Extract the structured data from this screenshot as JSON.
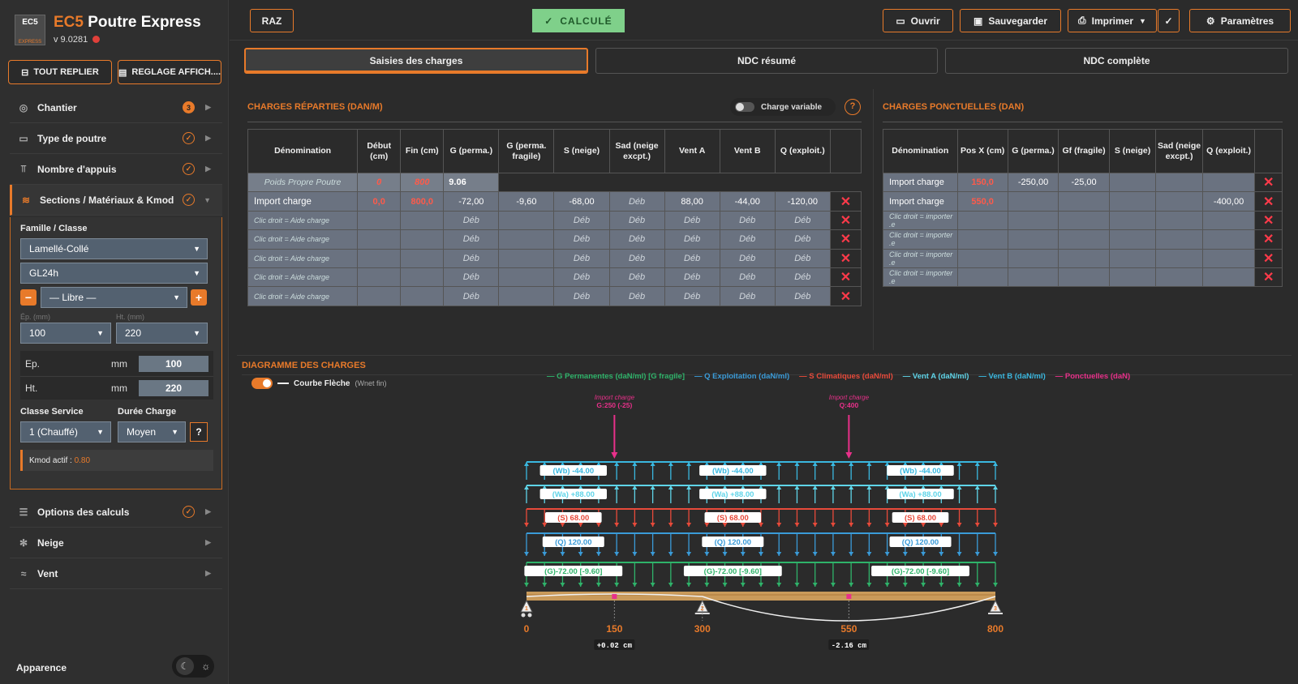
{
  "app": {
    "logo_text": "EC5",
    "logo_sub": "EXPRESS",
    "title_prefix": "EC5",
    "title_rest": "Poutre Express",
    "version": "v 9.0281"
  },
  "sidebar": {
    "btn_collapse": "TOUT REPLIER",
    "btn_display": "REGLAGE AFFICH....",
    "items": [
      {
        "label": "Chantier",
        "badge": "3"
      },
      {
        "label": "Type de poutre"
      },
      {
        "label": "Nombre d'appuis"
      },
      {
        "label": "Sections / Matériaux & Kmod"
      },
      {
        "label": "Options des calculs"
      },
      {
        "label": "Neige"
      },
      {
        "label": "Vent"
      }
    ],
    "panel": {
      "famille_label": "Famille / Classe",
      "famille": "Lamellé-Collé",
      "classe": "GL24h",
      "libre": "— Libre —",
      "ep_label": "Ép. (mm)",
      "ht_label": "Ht. (mm)",
      "ep_select": "100",
      "ht_select": "220",
      "ep_row": "Ep.",
      "ht_row": "Ht.",
      "unit": "mm",
      "ep_val": "100",
      "ht_val": "220",
      "service_label": "Classe Service",
      "duree_label": "Durée Charge",
      "service": "1 (Chauffé)",
      "duree": "Moyen",
      "help": "?",
      "kmod_label": "Kmod actif :",
      "kmod_val": "0.80"
    },
    "apparence": "Apparence"
  },
  "topbar": {
    "raz": "RAZ",
    "calc": "CALCULÉ",
    "ouvrir": "Ouvrir",
    "save": "Sauvegarder",
    "print": "Imprimer",
    "params": "Paramètres"
  },
  "tabs": [
    "Saisies des charges",
    "NDC résumé",
    "NDC complète"
  ],
  "reparties": {
    "title": "CHARGES RÉPARTIES (DAN/M)",
    "toggle_label": "Charge variable",
    "help": "?",
    "headers": [
      "Dénomination",
      "Début (cm)",
      "Fin (cm)",
      "G (perma.)",
      "G (perma. fragile)",
      "S (neige)",
      "Sad (neige excpt.)",
      "Vent A",
      "Vent B",
      "Q (exploit.)"
    ],
    "pp": {
      "name": "Poids Propre Poutre",
      "debut": "0",
      "fin": "800",
      "g": "9.06"
    },
    "row1": [
      "Import charge",
      "0,0",
      "800,0",
      "-72,00",
      "-9,60",
      "-68,00",
      "Déb",
      "88,00",
      "-44,00",
      "-120,00"
    ],
    "hint": "Clic droit = Aide charge",
    "deb": "Déb"
  },
  "ponctuelles": {
    "title": "CHARGES PONCTUELLES (DAN)",
    "headers": [
      "Dénomination",
      "Pos X (cm)",
      "G (perma.)",
      "Gf (fragile)",
      "S (neige)",
      "Sad (neige excpt.)",
      "Q (exploit.)"
    ],
    "row1": [
      "Import charge",
      "150,0",
      "-250,00",
      "-25,00",
      "",
      "",
      ""
    ],
    "row2": [
      "Import charge",
      "550,0",
      "",
      "",
      "",
      "",
      "-400,00"
    ],
    "hint": "Clic droit = importer .e"
  },
  "diagram": {
    "title": "DIAGRAMME DES CHARGES",
    "courbe": "Courbe Flèche",
    "courbe_sub": "(Wnet fin)",
    "legend": [
      {
        "label": "G Permanentes (daN/ml) [G fragile]",
        "color": "#2fb36a"
      },
      {
        "label": "Q Exploitation (daN/ml)",
        "color": "#3a9bd8"
      },
      {
        "label": "S Climatiques (daN/ml)",
        "color": "#e84a3a"
      },
      {
        "label": "Vent A (daN/ml)",
        "color": "#5fd4e8"
      },
      {
        "label": "Vent B (daN/ml)",
        "color": "#3ab8e0"
      },
      {
        "label": "Ponctuelles (daN)",
        "color": "#e8308a"
      }
    ],
    "point_loads": [
      {
        "name": "Import charge",
        "val": "G:250 (-25)",
        "x": 150
      },
      {
        "name": "Import charge",
        "val": "Q:400",
        "x": 550
      }
    ],
    "bands": [
      {
        "label": "(Wb) -44.00",
        "color": "#3ab8e0"
      },
      {
        "label": "(Wa) +88.00",
        "color": "#5fd4e8"
      },
      {
        "label": "(S) 68.00",
        "color": "#e84a3a"
      },
      {
        "label": "(Q) 120.00",
        "color": "#3a9bd8"
      },
      {
        "label": "(G)-72.00 [-9.60]",
        "color": "#2fb36a"
      }
    ],
    "axis": [
      {
        "x": 0,
        "label": "0"
      },
      {
        "x": 150,
        "label": "150"
      },
      {
        "x": 300,
        "label": "300"
      },
      {
        "x": 550,
        "label": "550"
      },
      {
        "x": 800,
        "label": "800"
      }
    ],
    "supports": [
      {
        "x": 0,
        "n": "1"
      },
      {
        "x": 300,
        "n": "2"
      },
      {
        "x": 800,
        "n": "3"
      }
    ],
    "deflections": [
      {
        "x": 150,
        "label": "+0.02 cm"
      },
      {
        "x": 550,
        "label": "-2.16 cm"
      }
    ]
  }
}
